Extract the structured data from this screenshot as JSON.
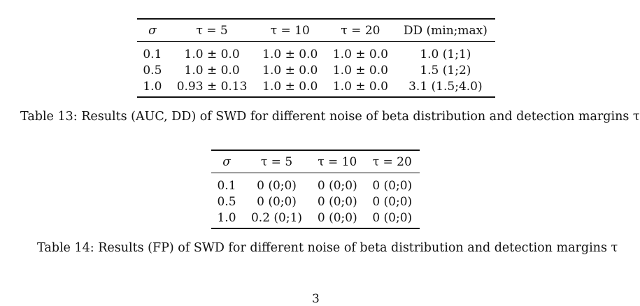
{
  "table13": {
    "headers": [
      "σ",
      "τ = 5",
      "τ = 10",
      "τ = 20",
      "DD (min;max)"
    ],
    "rows": [
      [
        "0.1",
        "1.0 ± 0.0",
        "1.0 ± 0.0",
        "1.0 ± 0.0",
        "1.0 (1;1)"
      ],
      [
        "0.5",
        "1.0 ± 0.0",
        "1.0 ± 0.0",
        "1.0 ± 0.0",
        "1.5 (1;2)"
      ],
      [
        "1.0",
        "0.93 ± 0.13",
        "1.0 ± 0.0",
        "1.0 ± 0.0",
        "3.1 (1.5;4.0)"
      ]
    ],
    "caption": "Table 13: Results (AUC, DD) of SWD for different noise of beta distribution and detection margins τ"
  },
  "table14": {
    "headers": [
      "σ",
      "τ = 5",
      "τ = 10",
      "τ = 20"
    ],
    "rows": [
      [
        "0.1",
        "0 (0;0)",
        "0 (0;0)",
        "0 (0;0)"
      ],
      [
        "0.5",
        "0 (0;0)",
        "0 (0;0)",
        "0 (0;0)"
      ],
      [
        "1.0",
        "0.2 (0;1)",
        "0 (0;0)",
        "0 (0;0)"
      ]
    ],
    "caption": "Table 14: Results (FP) of SWD for different noise of beta distribution and detection margins τ"
  },
  "page_number": "3"
}
